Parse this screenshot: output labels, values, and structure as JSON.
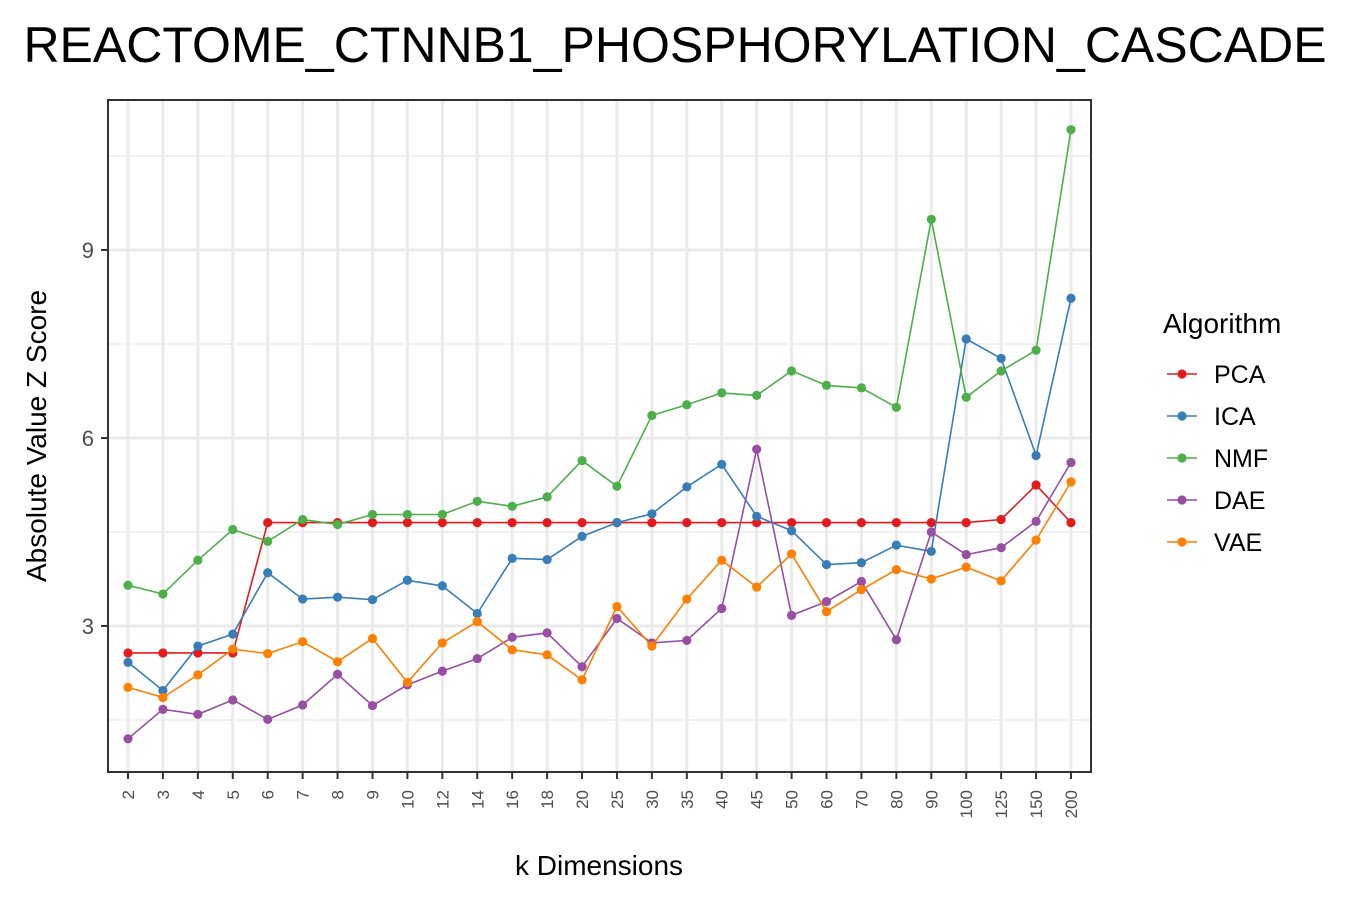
{
  "chart_data": {
    "type": "line",
    "title": "REACTOME_CTNNB1_PHOSPHORYLATION_CASCADE",
    "xlabel": "k Dimensions",
    "ylabel": "Absolute Value Z Score",
    "x": [
      "2",
      "3",
      "4",
      "5",
      "6",
      "7",
      "8",
      "9",
      "10",
      "12",
      "14",
      "16",
      "18",
      "20",
      "25",
      "30",
      "35",
      "40",
      "45",
      "50",
      "60",
      "70",
      "80",
      "90",
      "100",
      "125",
      "150",
      "200"
    ],
    "yticks": [
      3,
      6,
      9
    ],
    "ylim": [
      0.5,
      11.2
    ],
    "grid": true,
    "legend_title": "Algorithm",
    "legend_position": "right",
    "series": [
      {
        "name": "PCA",
        "color": "#e41a1c",
        "values": [
          2.57,
          2.57,
          2.57,
          2.57,
          4.65,
          4.65,
          4.65,
          4.65,
          4.65,
          4.65,
          4.65,
          4.65,
          4.65,
          4.65,
          4.65,
          4.65,
          4.65,
          4.65,
          4.65,
          4.65,
          4.65,
          4.65,
          4.65,
          4.65,
          4.65,
          4.7,
          5.25,
          4.65
        ]
      },
      {
        "name": "ICA",
        "color": "#377eb8",
        "values": [
          2.42,
          1.97,
          2.68,
          2.87,
          3.85,
          3.43,
          3.46,
          3.42,
          3.73,
          3.64,
          3.2,
          4.08,
          4.06,
          4.43,
          4.65,
          4.79,
          5.22,
          5.58,
          4.75,
          4.52,
          3.98,
          4.01,
          4.29,
          4.19,
          7.58,
          7.27,
          5.72,
          8.23
        ]
      },
      {
        "name": "NMF",
        "color": "#4daf4a",
        "values": [
          3.65,
          3.51,
          4.05,
          4.54,
          4.35,
          4.7,
          4.62,
          4.78,
          4.78,
          4.78,
          4.99,
          4.91,
          5.06,
          5.64,
          5.23,
          6.36,
          6.53,
          6.72,
          6.68,
          7.07,
          6.84,
          6.8,
          6.49,
          9.49,
          6.65,
          7.07,
          7.4,
          10.92
        ]
      },
      {
        "name": "DAE",
        "color": "#984ea3",
        "values": [
          1.2,
          1.67,
          1.59,
          1.82,
          1.51,
          1.74,
          2.23,
          1.73,
          2.06,
          2.28,
          2.48,
          2.82,
          2.89,
          2.35,
          3.12,
          2.73,
          2.77,
          3.28,
          5.82,
          3.17,
          3.39,
          3.71,
          2.78,
          4.5,
          4.14,
          4.25,
          4.67,
          5.61
        ]
      },
      {
        "name": "VAE",
        "color": "#ff7f00",
        "values": [
          2.02,
          1.86,
          2.22,
          2.63,
          2.56,
          2.75,
          2.43,
          2.8,
          2.1,
          2.73,
          3.07,
          2.62,
          2.54,
          2.14,
          3.31,
          2.68,
          3.43,
          4.05,
          3.62,
          4.15,
          3.23,
          3.58,
          3.9,
          3.75,
          3.94,
          3.72,
          4.37,
          5.3
        ]
      }
    ]
  }
}
